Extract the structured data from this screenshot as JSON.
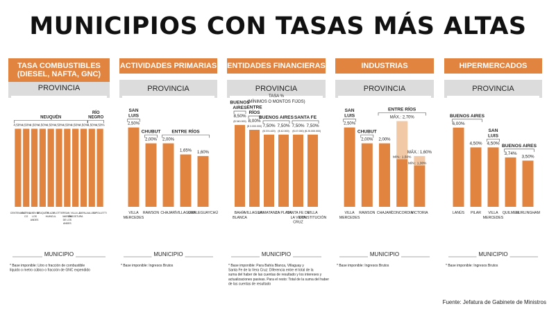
{
  "title": "MUNICIPIOS CON TASAS MÁS ALTAS",
  "source": "Fuente: Jefatura de Gabinete de Ministros",
  "colors": {
    "bar": "#e1843f",
    "bar_light": "#f2c9a6",
    "header": "#e1843f"
  },
  "panels": [
    {
      "header_lines": [
        "TASA COMBUSTIBLES",
        "(DIESEL, NAFTA, GNC)"
      ],
      "provincia": "PROVINCIA",
      "municipio_label": "MUNICIPIO",
      "footnote": [
        "* Base imponible: Litro o fracción de combustible",
        "líquido o metro cúbico o fracción de GNC expendido"
      ]
    },
    {
      "header_lines": [
        "ACTIVIDADES PRIMARIAS"
      ],
      "provincia": "PROVINCIA",
      "municipio_label": "MUNICIPIO",
      "footnote": [
        "* Base imponible: Ingresos Brutos"
      ]
    },
    {
      "header_lines": [
        "ENTIDADES FINANCIERAS"
      ],
      "provincia": "PROVINCIA",
      "sub_lines": [
        "TASA %",
        "(MÍNIMOS O MONTOS FIJOS)"
      ],
      "municipio_label": "MUNICIPIO",
      "footnote": [
        "* Base imponible: Para Bahía Blanca, Villaguay y",
        "Santa Fe de la Vera Cruz: Diferencia entre el total de la",
        "suma del haber de las cuentas de resultado y los intereses y",
        "actualizaciones pasivas. Para el resto: Total de la suma del haber",
        "de las cuentas de resultado"
      ]
    },
    {
      "header_lines": [
        "INDUSTRIAS"
      ],
      "provincia": "PROVINCIA",
      "municipio_label": "MUNICIPIO",
      "footnote": [
        "* Base imponible: Ingresos Brutos"
      ]
    },
    {
      "header_lines": [
        "HIPERMERCADOS"
      ],
      "provincia": "PROVINCIA",
      "municipio_label": "MUNICIPIO",
      "footnote": [
        "* Base imponible: Ingresos Brutos"
      ]
    }
  ],
  "chart_data": [
    {
      "type": "bar",
      "title": "TASA COMBUSTIBLES (DIESEL, NAFTA, GNC)",
      "unit": "%",
      "ylim": [
        0,
        8.6
      ],
      "categories": [
        "CENTENARIO",
        "CUTRAL CO",
        "JUNÍN DE LOS ANDES",
        "NEUQUÉN",
        "PLAZA HUINCUL",
        "PLOTTIER",
        "SAN MARTÍN DE LOS ANDES",
        "VILLA LA ANGOSTURA",
        "ZAPALA",
        "ALLEN",
        "CIPOLLETTI"
      ],
      "values": [
        4.5,
        4.5,
        4.5,
        4.5,
        4.5,
        4.5,
        4.5,
        4.5,
        4.5,
        4.5,
        4.5
      ],
      "value_labels": [
        "4,50%",
        "4,50%",
        "4,50%",
        "4,50%",
        "4,50%",
        "4,50%",
        "4,50%",
        "4,50%",
        "4,50%",
        "4,50%",
        "4,50%"
      ],
      "provinces": [
        {
          "lines": [
            "NEUQUÉN"
          ],
          "bars": 9
        },
        {
          "lines": [
            "RÍO",
            "NEGRO"
          ],
          "bars": 2
        }
      ]
    },
    {
      "type": "bar",
      "title": "ACTIVIDADES PRIMARIAS",
      "unit": "%",
      "ylim": [
        0,
        4.7
      ],
      "categories": [
        "VILLA MERCEDES",
        "RAWSON",
        "CHAJARÍ",
        "VILLAGUAY",
        "GUALEGUAYCHÚ"
      ],
      "values": [
        2.5,
        2.0,
        2.0,
        1.65,
        1.6
      ],
      "value_labels": [
        "2,50%",
        "2,00%",
        "2,00%",
        "1,65%",
        "1,60%"
      ],
      "provinces": [
        {
          "lines": [
            "SAN",
            "LUIS"
          ],
          "bars": 1
        },
        {
          "lines": [
            "CHUBUT"
          ],
          "bars": 1
        },
        {
          "lines": [
            "ENTRE RÍOS"
          ],
          "bars": 3
        }
      ]
    },
    {
      "type": "bar",
      "title": "ENTIDADES FINANCIERAS",
      "unit": "%",
      "ylim": [
        0,
        15.5
      ],
      "categories": [
        "BAHÍA BLANCA",
        "VILLAGUAY",
        "LA MATANZA",
        "LA PLATA",
        "SANTA FE DE LA VERA CRUZ",
        "VILLA CONSTITUCIÓN"
      ],
      "values": [
        8.5,
        8.0,
        7.5,
        7.5,
        7.5,
        7.5
      ],
      "value_labels": [
        "8,50%",
        "8,00%",
        "7,50%",
        "7,50%",
        "7,50%",
        "7,50%"
      ],
      "minimums": [
        "($ 340.000)",
        "($ 3.000.000)",
        "($ 374.420)",
        "($ 42.000)",
        "($ 47.000)",
        "($ 25.000.000)"
      ],
      "provinces": [
        {
          "lines": [
            "BUENOS",
            "AIRES"
          ],
          "bars": 1
        },
        {
          "lines": [
            "ENTRE",
            "RÍOS"
          ],
          "bars": 1
        },
        {
          "lines": [
            "BUENOS AIRES"
          ],
          "bars": 2
        },
        {
          "lines": [
            "SANTA FE"
          ],
          "bars": 2
        }
      ]
    },
    {
      "type": "bar",
      "title": "INDUSTRIAS",
      "unit": "%",
      "ylim": [
        0,
        4.7
      ],
      "categories": [
        "VILLA MERCEDES",
        "RAWSON",
        "CHAJARÍ",
        "CONCORDIA",
        "VICTORIA"
      ],
      "values": [
        2.5,
        2.0,
        2.0,
        2.7,
        1.6
      ],
      "min_values": [
        null,
        null,
        null,
        1.5,
        1.3
      ],
      "value_labels": [
        "2,50%",
        "2,00%",
        "2,00%",
        "MÁX.: 2,70%",
        "MÁX.: 1,60%"
      ],
      "min_labels": [
        "",
        "",
        "",
        "MÍN.: 1,50%",
        "MÍN.: 1,30%"
      ],
      "provinces": [
        {
          "lines": [
            "SAN",
            "LUIS"
          ],
          "bars": 1
        },
        {
          "lines": [
            "CHUBUT"
          ],
          "bars": 1
        },
        {
          "lines": [
            "ENTRE RÍOS"
          ],
          "bars": 3
        }
      ]
    },
    {
      "type": "bar",
      "title": "HIPERMERCADOS",
      "unit": "%",
      "ylim": [
        0,
        11.3
      ],
      "categories": [
        "LANÚS",
        "PILAR",
        "VILLA MERCEDES",
        "QUILMES",
        "HURLINGHAM"
      ],
      "values": [
        6.0,
        4.5,
        4.5,
        3.74,
        3.5
      ],
      "value_labels": [
        "6,00%",
        "4,50%",
        "4,50%",
        "3,74%",
        "3,50%"
      ],
      "provinces": [
        {
          "lines": [
            "BUENOS AIRES"
          ],
          "bars": 2
        },
        {
          "lines": [
            "SAN",
            "LUIS"
          ],
          "bars": 1
        },
        {
          "lines": [
            "BUENOS AIRES"
          ],
          "bars": 2
        }
      ]
    }
  ]
}
